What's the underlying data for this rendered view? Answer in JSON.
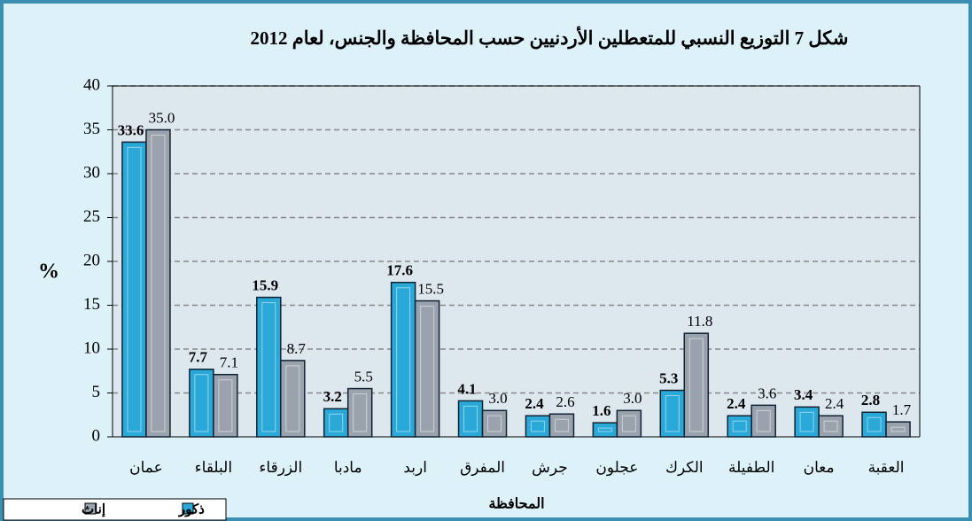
{
  "chart_data": {
    "type": "bar",
    "title": "شكل 7 التوزيع النسبي للمتعطلين الأردنيين حسب المحافظة والجنس، لعام 2012",
    "y_label": "%",
    "x_label": "المحافظة",
    "categories": [
      "عمان",
      "البلقاء",
      "الزرقاء",
      "مادبا",
      "اربد",
      "المفرق",
      "جرش",
      "عجلون",
      "الكرك",
      "الطفيلة",
      "معان",
      "العقبة"
    ],
    "series": [
      {
        "name": "ذكور",
        "color": "#2aa8d8",
        "values": [
          33.6,
          7.7,
          15.9,
          3.2,
          17.6,
          4.1,
          2.4,
          1.6,
          5.3,
          2.4,
          3.4,
          2.8
        ],
        "value_labels": [
          "33.6",
          "7.7",
          "15.9",
          "3.2",
          "17.6",
          "4.1",
          "2.4",
          "1.6",
          "5.3",
          "2.4",
          "3.4",
          "2.8"
        ]
      },
      {
        "name": "إناث",
        "color": "#9aa3ad",
        "values": [
          35.0,
          7.1,
          8.7,
          5.5,
          15.5,
          3.0,
          2.6,
          3.0,
          11.8,
          3.6,
          2.4,
          1.7
        ],
        "value_labels": [
          "35.0",
          "7.1",
          "8.7",
          "5.5",
          "15.5",
          "3.0",
          "2.6",
          "3.0",
          "11.8",
          "3.6",
          "2.4",
          "1.7"
        ]
      }
    ],
    "ylim": [
      0,
      40
    ],
    "yticks": [
      0,
      5,
      10,
      15,
      20,
      25,
      30,
      35,
      40
    ],
    "grid": true,
    "legend": "bottom-left"
  }
}
